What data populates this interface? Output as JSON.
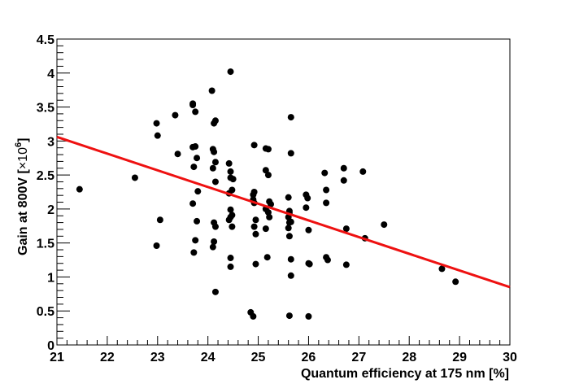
{
  "chart_data": {
    "type": "scatter",
    "xlabel": "Quantum efficiency at 175 nm [%]",
    "ylabel_main": "Gain at 800V [",
    "ylabel_times": "×10",
    "ylabel_exponent": "6",
    "ylabel_close": "]",
    "xlim": [
      21,
      30
    ],
    "ylim": [
      0,
      4.5
    ],
    "x_ticks": [
      21,
      22,
      23,
      24,
      25,
      26,
      27,
      28,
      29,
      30
    ],
    "y_ticks": [
      0,
      0.5,
      1,
      1.5,
      2,
      2.5,
      3,
      3.5,
      4,
      4.5
    ],
    "x_tick_labels": [
      "21",
      "22",
      "23",
      "24",
      "25",
      "26",
      "27",
      "28",
      "29",
      "30"
    ],
    "y_tick_labels": [
      "0",
      "0.5",
      "1",
      "1.5",
      "2",
      "2.5",
      "3",
      "3.5",
      "4",
      "4.5"
    ],
    "points": [
      [
        21.45,
        2.29
      ],
      [
        22.55,
        2.46
      ],
      [
        22.98,
        3.26
      ],
      [
        23.0,
        3.08
      ],
      [
        23.05,
        1.84
      ],
      [
        22.98,
        1.46
      ],
      [
        23.35,
        3.38
      ],
      [
        23.4,
        2.81
      ],
      [
        23.7,
        3.55
      ],
      [
        23.7,
        3.53
      ],
      [
        23.75,
        3.43
      ],
      [
        23.7,
        2.91
      ],
      [
        23.75,
        2.92
      ],
      [
        23.78,
        2.75
      ],
      [
        23.72,
        2.62
      ],
      [
        23.8,
        2.26
      ],
      [
        23.7,
        2.08
      ],
      [
        23.78,
        1.82
      ],
      [
        23.75,
        1.54
      ],
      [
        23.72,
        1.36
      ],
      [
        24.08,
        3.74
      ],
      [
        24.12,
        3.26
      ],
      [
        24.15,
        3.3
      ],
      [
        24.1,
        2.88
      ],
      [
        24.12,
        2.84
      ],
      [
        24.15,
        2.69
      ],
      [
        24.1,
        2.6
      ],
      [
        24.15,
        2.4
      ],
      [
        24.12,
        1.8
      ],
      [
        24.15,
        1.74
      ],
      [
        24.12,
        1.52
      ],
      [
        24.1,
        1.44
      ],
      [
        24.15,
        0.78
      ],
      [
        24.45,
        4.02
      ],
      [
        24.42,
        2.67
      ],
      [
        24.45,
        2.55
      ],
      [
        24.45,
        2.46
      ],
      [
        24.5,
        2.44
      ],
      [
        24.48,
        2.28
      ],
      [
        24.42,
        2.23
      ],
      [
        24.45,
        1.99
      ],
      [
        24.48,
        1.91
      ],
      [
        24.45,
        1.88
      ],
      [
        24.42,
        1.84
      ],
      [
        24.48,
        1.74
      ],
      [
        24.45,
        1.28
      ],
      [
        24.45,
        1.15
      ],
      [
        24.85,
        0.48
      ],
      [
        24.9,
        0.42
      ],
      [
        24.92,
        2.94
      ],
      [
        24.92,
        2.25
      ],
      [
        24.9,
        2.21
      ],
      [
        24.9,
        2.14
      ],
      [
        24.92,
        2.09
      ],
      [
        24.95,
        1.84
      ],
      [
        24.92,
        1.74
      ],
      [
        24.95,
        1.63
      ],
      [
        24.95,
        1.19
      ],
      [
        25.15,
        2.89
      ],
      [
        25.2,
        2.88
      ],
      [
        25.15,
        2.57
      ],
      [
        25.2,
        2.5
      ],
      [
        25.22,
        2.11
      ],
      [
        25.25,
        2.07
      ],
      [
        25.15,
        2.0
      ],
      [
        25.2,
        1.95
      ],
      [
        25.22,
        1.88
      ],
      [
        25.15,
        1.71
      ],
      [
        25.18,
        1.29
      ],
      [
        25.65,
        3.35
      ],
      [
        25.65,
        2.82
      ],
      [
        25.6,
        2.17
      ],
      [
        25.62,
        1.97
      ],
      [
        25.62,
        1.94
      ],
      [
        25.6,
        1.88
      ],
      [
        25.62,
        1.8
      ],
      [
        25.65,
        1.81
      ],
      [
        25.6,
        1.72
      ],
      [
        25.62,
        1.6
      ],
      [
        25.65,
        1.26
      ],
      [
        25.65,
        1.02
      ],
      [
        25.62,
        0.43
      ],
      [
        25.95,
        2.21
      ],
      [
        25.98,
        2.16
      ],
      [
        25.95,
        2.02
      ],
      [
        26.0,
        1.69
      ],
      [
        26.0,
        1.2
      ],
      [
        26.02,
        1.19
      ],
      [
        26.0,
        0.42
      ],
      [
        26.32,
        2.53
      ],
      [
        26.35,
        2.28
      ],
      [
        26.35,
        2.09
      ],
      [
        26.35,
        1.29
      ],
      [
        26.38,
        1.25
      ],
      [
        26.7,
        2.6
      ],
      [
        26.7,
        2.42
      ],
      [
        26.75,
        1.71
      ],
      [
        26.75,
        1.18
      ],
      [
        27.08,
        2.55
      ],
      [
        27.12,
        1.57
      ],
      [
        27.5,
        1.77
      ],
      [
        28.65,
        1.12
      ],
      [
        28.92,
        0.93
      ]
    ],
    "fit_line": {
      "x": [
        21,
        30
      ],
      "y": [
        3.06,
        0.85
      ]
    },
    "marker_color": "#000000",
    "fit_color": "#ee1111",
    "grid": false,
    "legend": "none"
  }
}
